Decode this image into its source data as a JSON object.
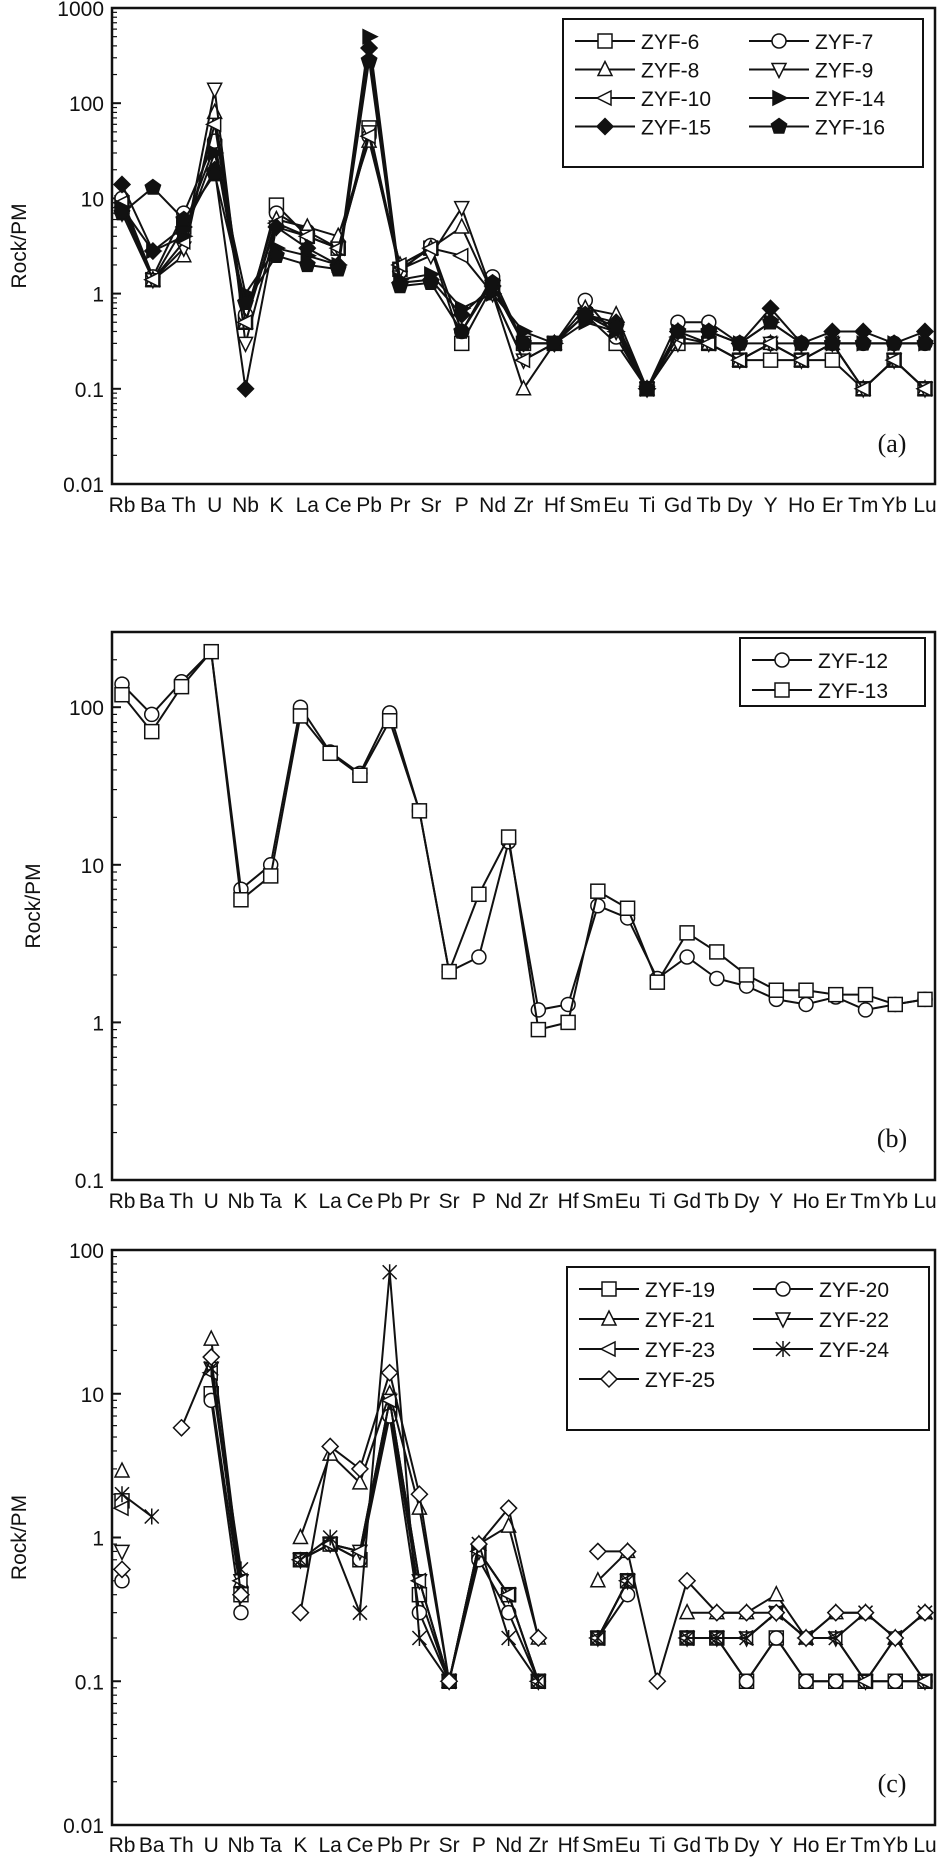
{
  "chart_data": [
    {
      "type": "line",
      "panel_label": "(a)",
      "ylabel": "Rock/PM",
      "yscale": "log",
      "ylim": [
        0.01,
        1000
      ],
      "yticks": [
        "0.01",
        "0.1",
        "1",
        "10",
        "100",
        "1000"
      ],
      "legend_position": "top-right",
      "categories": [
        "Rb",
        "Ba",
        "Th",
        "U",
        "Nb",
        "K",
        "La",
        "Ce",
        "Pb",
        "Pr",
        "Sr",
        "P",
        "Nd",
        "Zr",
        "Hf",
        "Sm",
        "Eu",
        "Ti",
        "Gd",
        "Tb",
        "Dy",
        "Y",
        "Ho",
        "Er",
        "Tm",
        "Yb",
        "Lu"
      ],
      "series": [
        {
          "name": "ZYF-6",
          "marker": "square",
          "filled": false,
          "values": [
            9,
            1.4,
            5,
            35,
            0.5,
            8.5,
            4,
            3,
            55,
            1.8,
            3,
            0.3,
            1.2,
            0.3,
            0.3,
            0.6,
            0.3,
            0.1,
            0.3,
            0.3,
            0.2,
            0.2,
            0.2,
            0.2,
            0.1,
            0.2,
            0.1
          ]
        },
        {
          "name": "ZYF-7",
          "marker": "circle",
          "filled": false,
          "values": [
            10,
            1.5,
            7,
            40,
            0.6,
            7,
            4.5,
            3,
            45,
            1.7,
            3.2,
            0.4,
            1.5,
            0.3,
            0.3,
            0.85,
            0.35,
            0.1,
            0.5,
            0.5,
            0.3,
            0.3,
            0.3,
            0.3,
            0.3,
            0.3,
            0.3
          ]
        },
        {
          "name": "ZYF-8",
          "marker": "triangle",
          "filled": false,
          "values": [
            8,
            1.4,
            2.5,
            80,
            0.5,
            6,
            5,
            4,
            40,
            2,
            3,
            5,
            1,
            0.1,
            0.3,
            0.7,
            0.6,
            0.1,
            0.4,
            0.3,
            0.2,
            0.3,
            0.2,
            0.3,
            0.1,
            0.2,
            0.1
          ]
        },
        {
          "name": "ZYF-9",
          "marker": "tri-down",
          "filled": false,
          "values": [
            7,
            1.4,
            3,
            140,
            0.3,
            5,
            4,
            3,
            50,
            1.8,
            2.5,
            8,
            1,
            0.2,
            0.3,
            0.6,
            0.4,
            0.1,
            0.3,
            0.3,
            0.2,
            0.3,
            0.2,
            0.3,
            0.1,
            0.2,
            0.1
          ]
        },
        {
          "name": "ZYF-10",
          "marker": "tri-left",
          "filled": false,
          "values": [
            9,
            1.4,
            3.5,
            60,
            0.5,
            5.5,
            4,
            3,
            45,
            2,
            3,
            2.5,
            1,
            0.2,
            0.3,
            0.6,
            0.4,
            0.1,
            0.35,
            0.3,
            0.2,
            0.3,
            0.2,
            0.3,
            0.1,
            0.2,
            0.1
          ]
        },
        {
          "name": "ZYF-14",
          "marker": "tri-right",
          "filled": true,
          "values": [
            8,
            2.8,
            4,
            30,
            1,
            3,
            2.5,
            2,
            500,
            1.4,
            1.6,
            0.7,
            1,
            0.4,
            0.3,
            0.5,
            0.4,
            0.1,
            0.4,
            0.4,
            0.3,
            0.5,
            0.3,
            0.3,
            0.3,
            0.3,
            0.3
          ]
        },
        {
          "name": "ZYF-15",
          "marker": "diamond",
          "filled": true,
          "values": [
            14,
            2.8,
            5,
            20,
            0.1,
            5,
            3,
            2,
            380,
            1.3,
            1.4,
            0.6,
            1.2,
            0.3,
            0.3,
            0.6,
            0.5,
            0.1,
            0.4,
            0.4,
            0.3,
            0.7,
            0.3,
            0.4,
            0.4,
            0.3,
            0.4
          ]
        },
        {
          "name": "ZYF-16",
          "marker": "pentagon",
          "filled": true,
          "values": [
            7,
            13,
            6,
            18,
            0.8,
            2.5,
            2,
            1.8,
            280,
            1.2,
            1.3,
            0.4,
            1.3,
            0.3,
            0.3,
            0.6,
            0.45,
            0.1,
            0.4,
            0.4,
            0.3,
            0.5,
            0.3,
            0.3,
            0.3,
            0.3,
            0.3
          ]
        }
      ]
    },
    {
      "type": "line",
      "panel_label": "(b)",
      "ylabel": "Rock/PM",
      "yscale": "log",
      "ylim": [
        0.1,
        300
      ],
      "yticks": [
        "0.1",
        "1",
        "10",
        "100"
      ],
      "legend_position": "top-right",
      "categories": [
        "Rb",
        "Ba",
        "Th",
        "U",
        "Nb",
        "Ta",
        "K",
        "La",
        "Ce",
        "Pb",
        "Pr",
        "Sr",
        "P",
        "Nd",
        "Zr",
        "Hf",
        "Sm",
        "Eu",
        "Ti",
        "Gd",
        "Tb",
        "Dy",
        "Y",
        "Ho",
        "Er",
        "Tm",
        "Yb",
        "Lu"
      ],
      "series": [
        {
          "name": "ZYF-12",
          "marker": "circle",
          "filled": false,
          "values": [
            140,
            90,
            145,
            225,
            7,
            10,
            100,
            52,
            38,
            92,
            22,
            2.1,
            2.6,
            14,
            1.2,
            1.3,
            5.5,
            4.6,
            1.9,
            2.6,
            1.9,
            1.7,
            1.4,
            1.3,
            1.45,
            1.2,
            1.3,
            1.4
          ]
        },
        {
          "name": "ZYF-13",
          "marker": "square",
          "filled": false,
          "values": [
            120,
            70,
            135,
            225,
            6,
            8.5,
            88,
            51,
            37,
            82,
            22,
            2.1,
            6.5,
            15,
            0.9,
            1,
            6.8,
            5.3,
            1.8,
            3.7,
            2.8,
            2,
            1.6,
            1.6,
            1.5,
            1.5,
            1.3,
            1.4
          ]
        }
      ]
    },
    {
      "type": "line",
      "panel_label": "(c)",
      "ylabel": "Rock/PM",
      "yscale": "log",
      "ylim": [
        0.01,
        100
      ],
      "yticks": [
        "0.01",
        "0.1",
        "1",
        "10",
        "100"
      ],
      "legend_position": "top-right",
      "categories": [
        "Rb",
        "Ba",
        "Th",
        "U",
        "Nb",
        "Ta",
        "K",
        "La",
        "Ce",
        "Pb",
        "Pr",
        "Sr",
        "P",
        "Nd",
        "Zr",
        "Hf",
        "Sm",
        "Eu",
        "Ti",
        "Gd",
        "Tb",
        "Dy",
        "Y",
        "Ho",
        "Er",
        "Tm",
        "Yb",
        "Lu"
      ],
      "series": [
        {
          "name": "ZYF-19",
          "marker": "square",
          "filled": false,
          "values": [
            1.8,
            null,
            null,
            10,
            0.4,
            null,
            0.7,
            0.9,
            0.7,
            8,
            0.4,
            0.1,
            0.8,
            0.4,
            0.1,
            null,
            0.2,
            0.5,
            null,
            0.2,
            0.2,
            0.1,
            0.2,
            0.1,
            0.1,
            0.1,
            0.1,
            0.1
          ]
        },
        {
          "name": "ZYF-20",
          "marker": "circle",
          "filled": false,
          "values": [
            0.5,
            null,
            null,
            9,
            0.3,
            null,
            0.7,
            0.9,
            0.7,
            7,
            0.3,
            0.1,
            0.7,
            0.3,
            0.1,
            null,
            0.2,
            0.4,
            null,
            0.2,
            0.2,
            0.1,
            0.2,
            0.1,
            0.1,
            0.1,
            0.1,
            0.1
          ]
        },
        {
          "name": "ZYF-21",
          "marker": "triangle",
          "filled": false,
          "values": [
            2.9,
            null,
            null,
            24,
            0.5,
            null,
            1,
            3.8,
            2.4,
            10,
            1.6,
            0.1,
            0.9,
            1.2,
            0.2,
            null,
            0.5,
            0.8,
            null,
            0.3,
            0.3,
            0.3,
            0.4,
            0.2,
            0.3,
            0.3,
            0.2,
            0.3
          ]
        },
        {
          "name": "ZYF-22",
          "marker": "tri-down",
          "filled": false,
          "values": [
            0.8,
            null,
            null,
            15,
            0.5,
            null,
            0.7,
            0.9,
            0.8,
            9,
            0.5,
            0.1,
            0.8,
            0.4,
            0.1,
            null,
            0.2,
            0.5,
            null,
            0.2,
            0.2,
            0.2,
            0.3,
            0.2,
            0.2,
            0.1,
            0.2,
            0.1
          ]
        },
        {
          "name": "ZYF-23",
          "marker": "tri-left",
          "filled": false,
          "values": [
            1.6,
            null,
            null,
            14,
            0.5,
            null,
            0.7,
            0.9,
            0.8,
            9,
            0.5,
            0.1,
            0.8,
            0.4,
            0.1,
            null,
            0.2,
            0.5,
            null,
            0.2,
            0.2,
            0.2,
            0.3,
            0.2,
            0.2,
            0.1,
            0.2,
            0.1
          ]
        },
        {
          "name": "ZYF-24",
          "marker": "asterisk",
          "filled": false,
          "values": [
            2,
            1.4,
            null,
            15,
            0.6,
            null,
            0.7,
            1,
            0.3,
            70,
            0.2,
            0.1,
            0.9,
            0.2,
            0.1,
            null,
            0.2,
            0.5,
            null,
            0.2,
            0.2,
            0.2,
            0.3,
            0.2,
            0.2,
            0.3,
            0.2,
            0.3
          ]
        },
        {
          "name": "ZYF-25",
          "marker": "diamond",
          "filled": false,
          "values": [
            0.6,
            null,
            5.8,
            18,
            0.4,
            null,
            0.3,
            4.3,
            3,
            14,
            2,
            0.1,
            0.9,
            1.6,
            0.2,
            null,
            0.8,
            0.8,
            0.1,
            0.5,
            0.3,
            0.3,
            0.3,
            0.2,
            0.3,
            0.3,
            0.2,
            0.3
          ]
        }
      ]
    }
  ]
}
